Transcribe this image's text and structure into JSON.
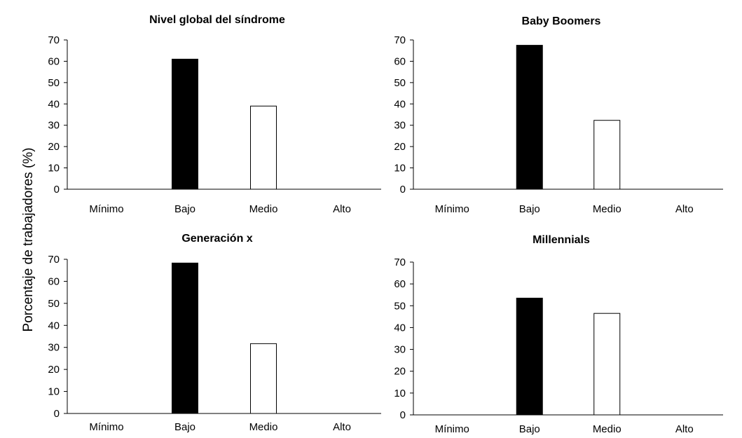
{
  "shared_ylabel": "Porcentaje de trabajadores (%)",
  "chart_data": [
    {
      "type": "bar",
      "title": "Nivel global del síndrome",
      "categories": [
        "Mínimo",
        "Bajo",
        "Medio",
        "Alto"
      ],
      "values": [
        0,
        61,
        39,
        0
      ],
      "bar_fills": [
        "#000000",
        "#000000",
        "#ffffff",
        "#ffffff"
      ],
      "ylim": [
        0,
        70
      ],
      "yticks": [
        "0",
        "10",
        "20",
        "30",
        "40",
        "50",
        "60",
        "70"
      ],
      "grid": false,
      "legend": "none"
    },
    {
      "type": "bar",
      "title": "Baby Boomers",
      "categories": [
        "Mínimo",
        "Bajo",
        "Medio",
        "Alto"
      ],
      "values": [
        0,
        67.5,
        32.3,
        0
      ],
      "bar_fills": [
        "#000000",
        "#000000",
        "#ffffff",
        "#ffffff"
      ],
      "ylim": [
        0,
        70
      ],
      "yticks": [
        "0",
        "10",
        "20",
        "30",
        "40",
        "50",
        "60",
        "70"
      ],
      "grid": false,
      "legend": "none"
    },
    {
      "type": "bar",
      "title": "Generación x",
      "categories": [
        "Mínimo",
        "Bajo",
        "Medio",
        "Alto"
      ],
      "values": [
        0,
        68.3,
        31.7,
        0
      ],
      "bar_fills": [
        "#000000",
        "#000000",
        "#ffffff",
        "#ffffff"
      ],
      "ylim": [
        0,
        70
      ],
      "yticks": [
        "0",
        "10",
        "20",
        "30",
        "40",
        "50",
        "60",
        "70"
      ],
      "grid": false,
      "legend": "none"
    },
    {
      "type": "bar",
      "title": "Millennials",
      "categories": [
        "Mínimo",
        "Bajo",
        "Medio",
        "Alto"
      ],
      "values": [
        0,
        53.5,
        46.5,
        0
      ],
      "bar_fills": [
        "#000000",
        "#000000",
        "#ffffff",
        "#ffffff"
      ],
      "ylim": [
        0,
        70
      ],
      "yticks": [
        "0",
        "10",
        "20",
        "30",
        "40",
        "50",
        "60",
        "70"
      ],
      "grid": false,
      "legend": "none"
    }
  ]
}
